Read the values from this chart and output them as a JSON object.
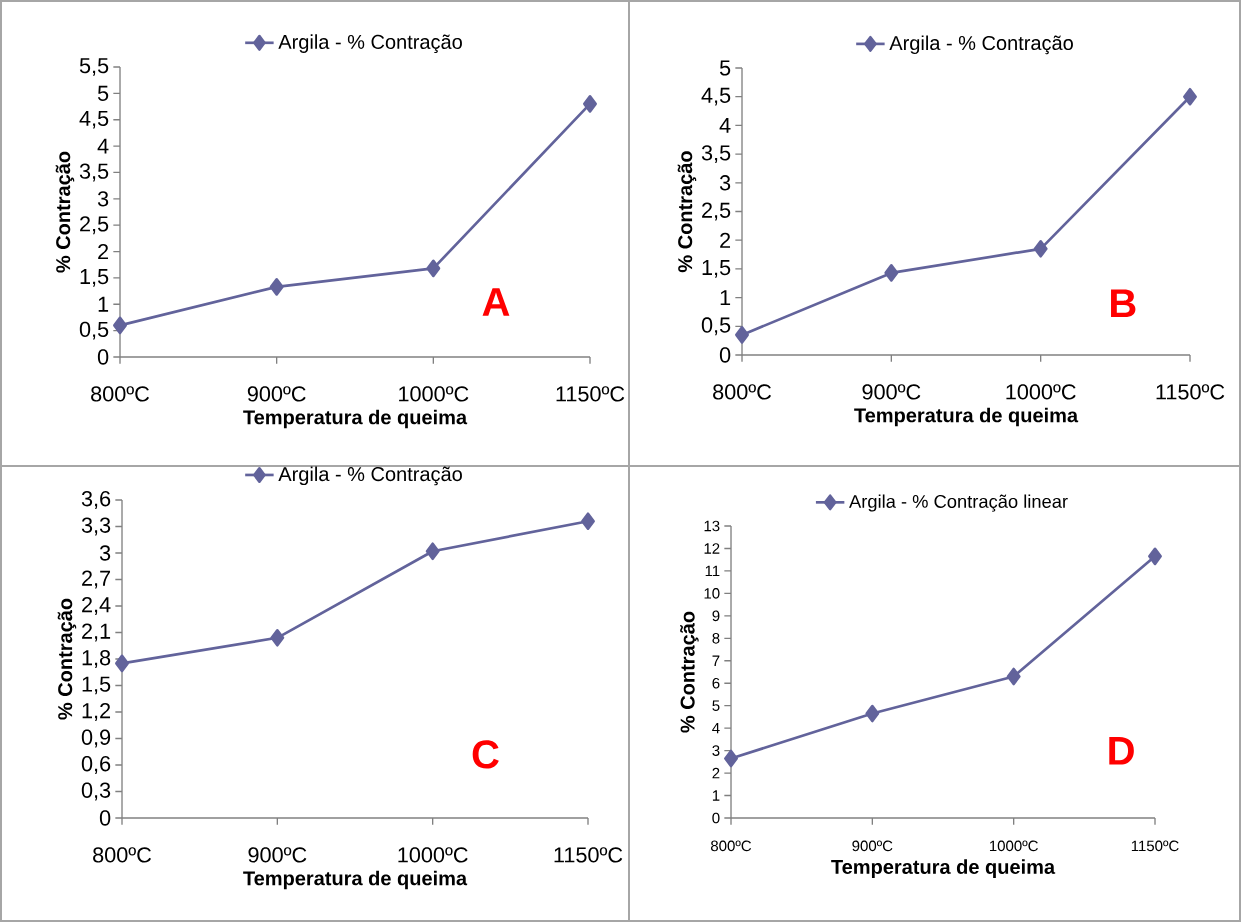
{
  "chart_data": [
    {
      "type": "line",
      "xlabel": "Temperatura de queima",
      "ylabel": "% Contração",
      "categories": [
        "800ºC",
        "900ºC",
        "1000ºC",
        "1150ºC"
      ],
      "series": [
        {
          "name": "Argila - % Contração",
          "color": "#62639b",
          "values": [
            0.6,
            1.33,
            1.68,
            4.8
          ]
        }
      ],
      "ylim": [
        0,
        5.5
      ],
      "yticks": [
        0,
        {
          "value": 0.5,
          "label": "0,5"
        },
        1,
        {
          "value": 1.5,
          "label": "1,5"
        },
        2,
        {
          "value": 2.5,
          "label": "2,5"
        },
        3,
        {
          "value": 3.5,
          "label": "3,5"
        },
        4,
        {
          "value": 4.5,
          "label": "4,5"
        },
        5,
        {
          "value": 5.5,
          "label": "5,5"
        }
      ],
      "legend": "top",
      "marker": "diamond",
      "line_style": "solid",
      "grid": false,
      "annotations": [
        "A"
      ]
    },
    {
      "type": "line",
      "xlabel": "Temperatura de queima",
      "ylabel": "% Contração",
      "categories": [
        "800ºC",
        "900ºC",
        "1000ºC",
        "1150ºC"
      ],
      "series": [
        {
          "name": "Argila - % Contração",
          "color": "#62639b",
          "values": [
            0.35,
            1.43,
            1.85,
            4.5
          ]
        }
      ],
      "ylim": [
        0,
        5
      ],
      "yticks": [
        0,
        {
          "value": 0.5,
          "label": "0,5"
        },
        1,
        {
          "value": 1.5,
          "label": "1,5"
        },
        2,
        {
          "value": 2.5,
          "label": "2,5"
        },
        3,
        {
          "value": 3.5,
          "label": "3,5"
        },
        4,
        {
          "value": 4.5,
          "label": "4,5"
        },
        5
      ],
      "legend": "top",
      "marker": "diamond",
      "line_style": "solid",
      "grid": false,
      "annotations": [
        "B"
      ]
    },
    {
      "type": "line",
      "xlabel": "Temperatura de queima",
      "ylabel": "% Contração",
      "categories": [
        "800ºC",
        "900ºC",
        "1000ºC",
        "1150ºC"
      ],
      "series": [
        {
          "name": "Argila - % Contração",
          "color": "#62639b",
          "values": [
            1.75,
            2.04,
            3.02,
            3.36
          ]
        }
      ],
      "ylim": [
        0,
        3.6
      ],
      "yticks": [
        0,
        {
          "value": 0.3,
          "label": "0,3"
        },
        {
          "value": 0.6,
          "label": "0,6"
        },
        {
          "value": 0.9,
          "label": "0,9"
        },
        {
          "value": 1.2,
          "label": "1,2"
        },
        {
          "value": 1.5,
          "label": "1,5"
        },
        {
          "value": 1.8,
          "label": "1,8"
        },
        {
          "value": 2.1,
          "label": "2,1"
        },
        {
          "value": 2.4,
          "label": "2,4"
        },
        {
          "value": 2.7,
          "label": "2,7"
        },
        3,
        {
          "value": 3.3,
          "label": "3,3"
        },
        {
          "value": 3.6,
          "label": "3,6"
        }
      ],
      "legend": "top",
      "marker": "diamond",
      "line_style": "solid",
      "grid": false,
      "annotations": [
        "C"
      ]
    },
    {
      "type": "line",
      "xlabel": "Temperatura de queima",
      "ylabel": "% Contração",
      "categories": [
        "800ºC",
        "900ºC",
        "1000ºC",
        "1150ºC"
      ],
      "series": [
        {
          "name": "Argila - % Contração linear",
          "color": "#62639b",
          "values": [
            2.65,
            4.65,
            6.3,
            11.65
          ]
        }
      ],
      "ylim": [
        0,
        13
      ],
      "yticks": [
        0,
        1,
        2,
        3,
        4,
        5,
        6,
        7,
        8,
        9,
        10,
        11,
        12,
        13
      ],
      "legend": "top",
      "marker": "diamond",
      "line_style": "solid",
      "grid": false,
      "annotations": [
        "D"
      ]
    }
  ]
}
